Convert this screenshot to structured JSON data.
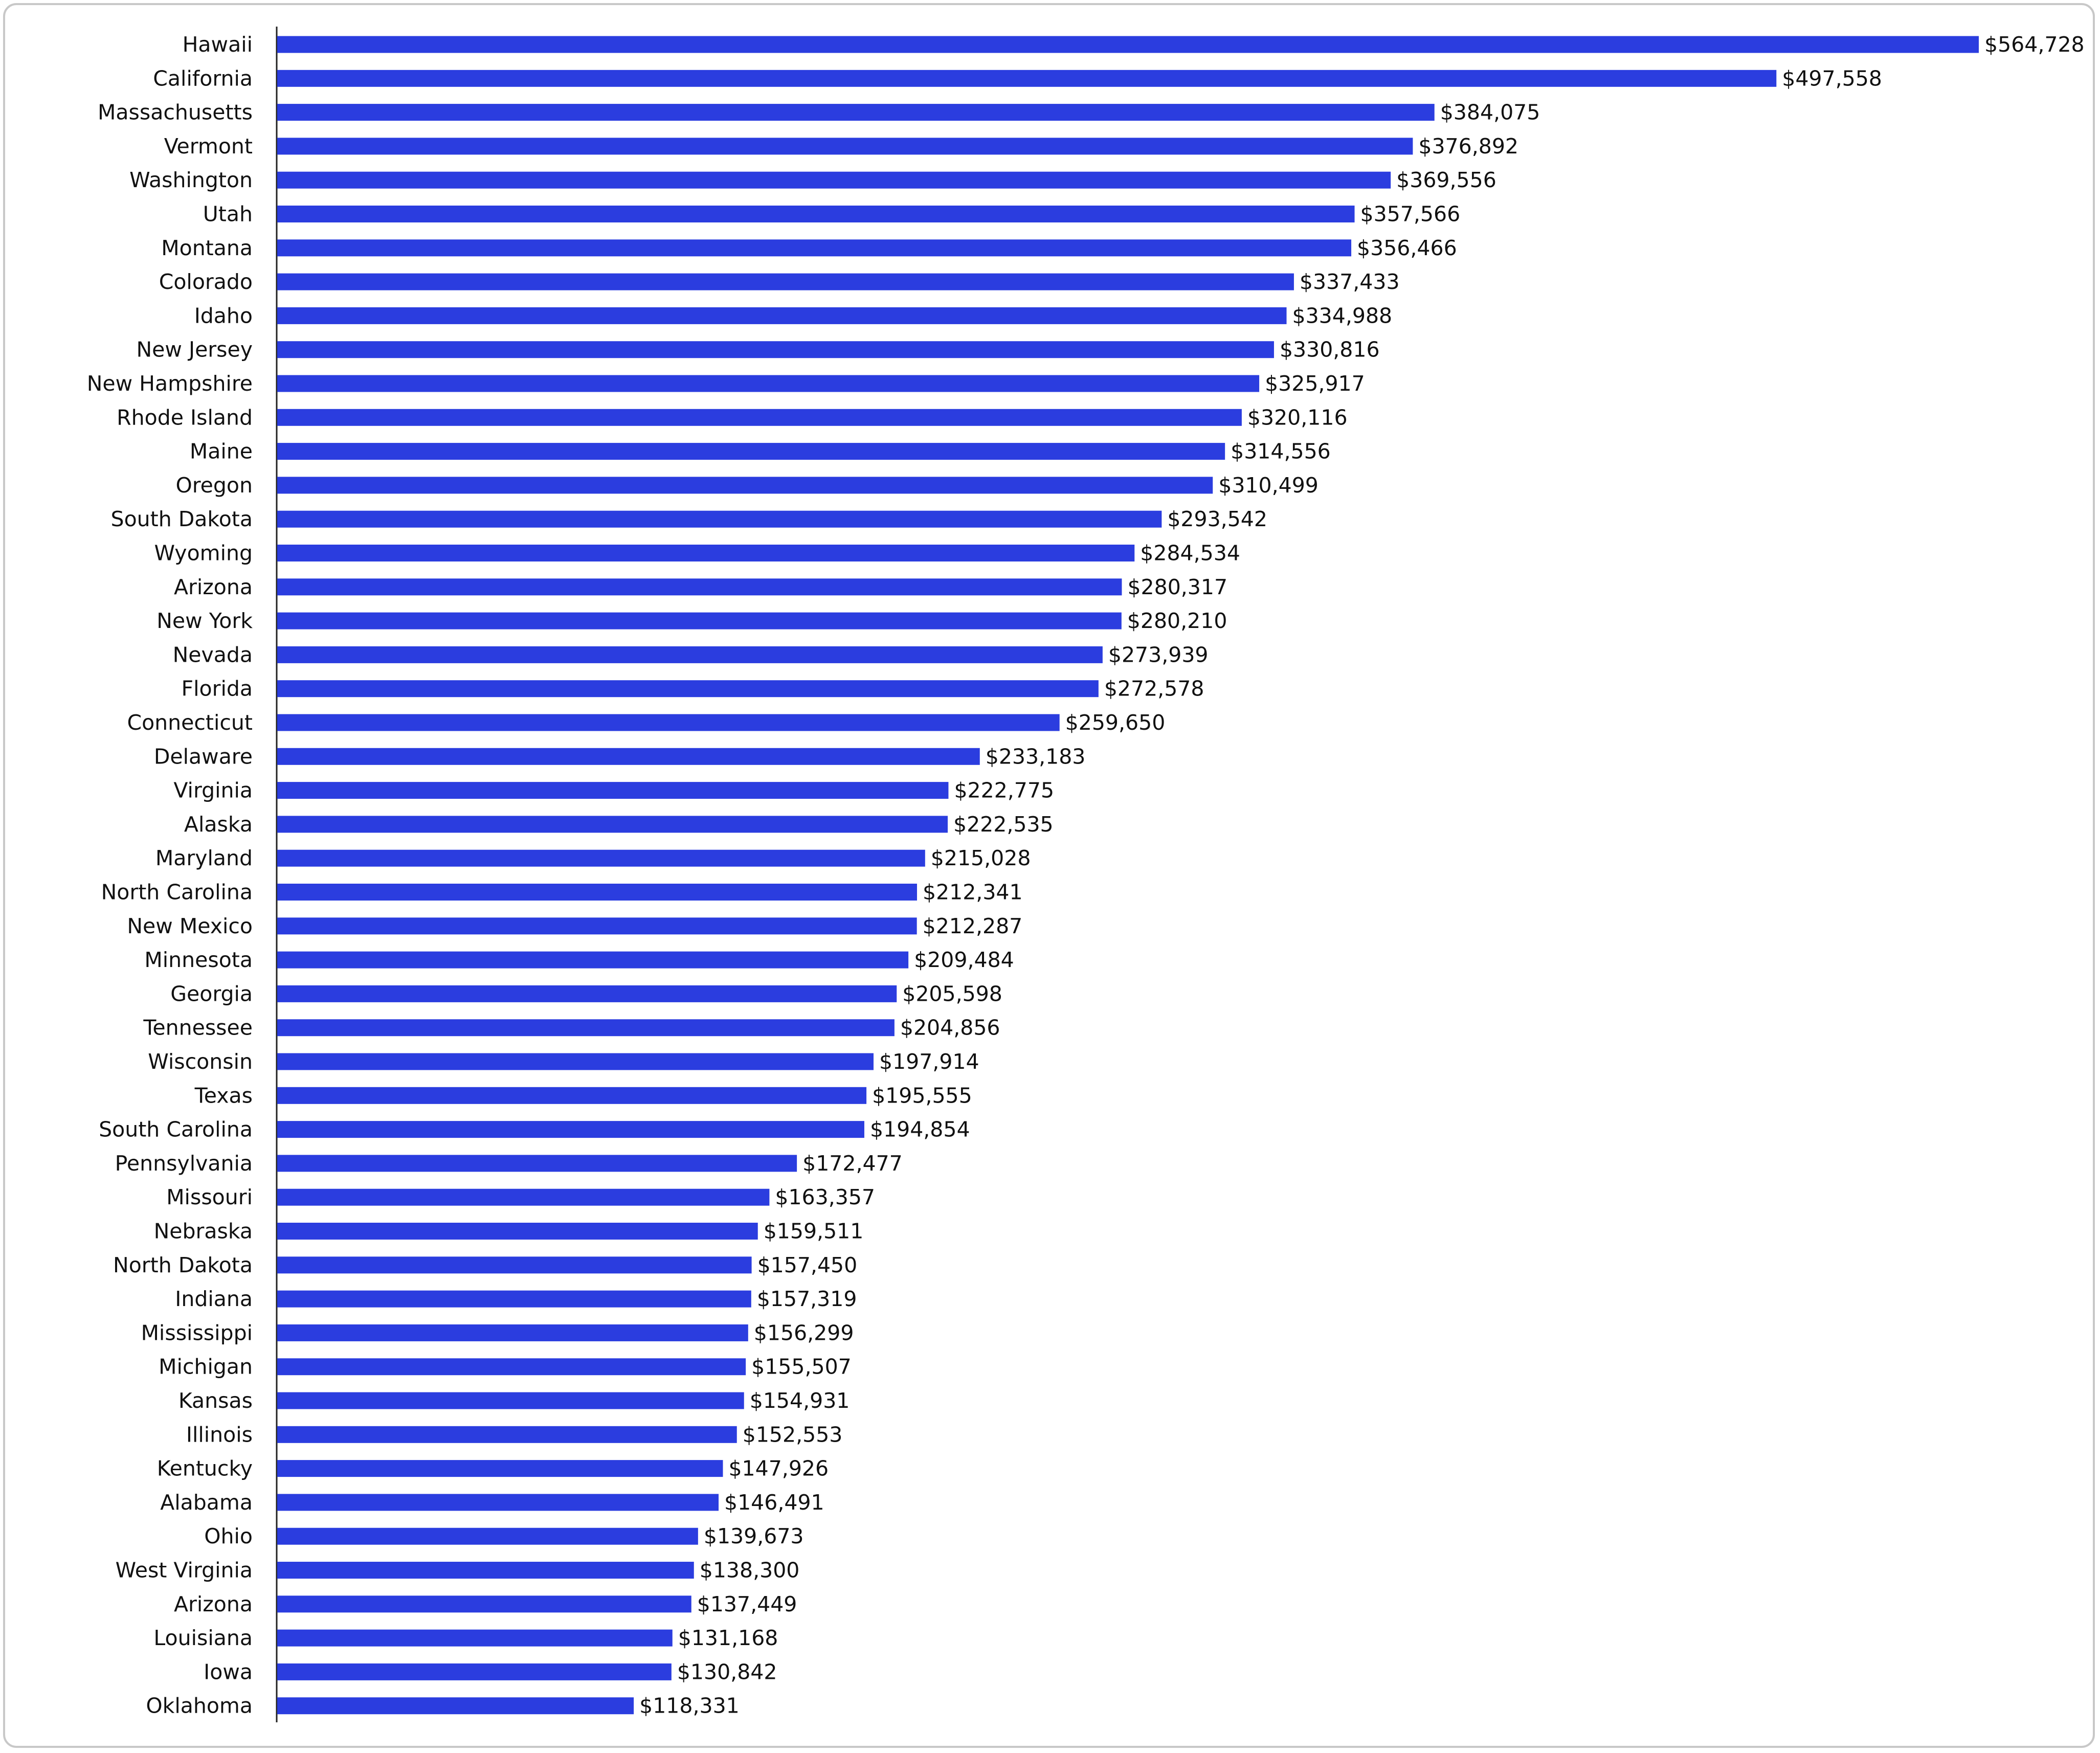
{
  "chart_data": {
    "type": "bar",
    "orientation": "horizontal",
    "title": "",
    "xlabel": "",
    "ylabel": "",
    "xlim": [
      0,
      564728
    ],
    "grid": false,
    "legend": "none",
    "bar_color": "#2b3ddf",
    "categories": [
      "Hawaii",
      "California",
      "Massachusetts",
      "Vermont",
      "Washington",
      "Utah",
      "Montana",
      "Colorado",
      "Idaho",
      "New Jersey",
      "New Hampshire",
      "Rhode Island",
      "Maine",
      "Oregon",
      "South Dakota",
      "Wyoming",
      "Arizona",
      "New York",
      "Nevada",
      "Florida",
      "Connecticut",
      "Delaware",
      "Virginia",
      "Alaska",
      "Maryland",
      "North Carolina",
      "New Mexico",
      "Minnesota",
      "Georgia",
      "Tennessee",
      "Wisconsin",
      "Texas",
      "South Carolina",
      "Pennsylvania",
      "Missouri",
      "Nebraska",
      "North Dakota",
      "Indiana",
      "Mississippi",
      "Michigan",
      "Kansas",
      "Illinois",
      "Kentucky",
      "Alabama",
      "Ohio",
      "West Virginia",
      "Arizona",
      "Louisiana",
      "Iowa",
      "Oklahoma"
    ],
    "values": [
      564728,
      497558,
      384075,
      376892,
      369556,
      357566,
      356466,
      337433,
      334988,
      330816,
      325917,
      320116,
      314556,
      310499,
      293542,
      284534,
      280317,
      280210,
      273939,
      272578,
      259650,
      233183,
      222775,
      222535,
      215028,
      212341,
      212287,
      209484,
      205598,
      204856,
      197914,
      195555,
      194854,
      172477,
      163357,
      159511,
      157450,
      157319,
      156299,
      155507,
      154931,
      152553,
      147926,
      146491,
      139673,
      138300,
      137449,
      131168,
      130842,
      118331
    ],
    "labels": [
      "$564,728",
      "$497,558",
      "$384,075",
      "$376,892",
      "$369,556",
      "$357,566",
      "$356,466",
      "$337,433",
      "$334,988",
      "$330,816",
      "$325,917",
      "$320,116",
      "$314,556",
      "$310,499",
      "$293,542",
      "$284,534",
      "$280,317",
      "$280,210",
      "$273,939",
      "$272,578",
      "$259,650",
      "$233,183",
      "$222,775",
      "$222,535",
      "$215,028",
      "$212,341",
      "$212,287",
      "$209,484",
      "$205,598",
      "$204,856",
      "$197,914",
      "$195,555",
      "$194,854",
      "$172,477",
      "$163,357",
      "$159,511",
      "$157,450",
      "$157,319",
      "$156,299",
      "$155,507",
      "$154,931",
      "$152,553",
      "$147,926",
      "$146,491",
      "$139,673",
      "$138,300",
      "$137,449",
      "$131,168",
      "$130,842",
      "$118,331"
    ]
  }
}
